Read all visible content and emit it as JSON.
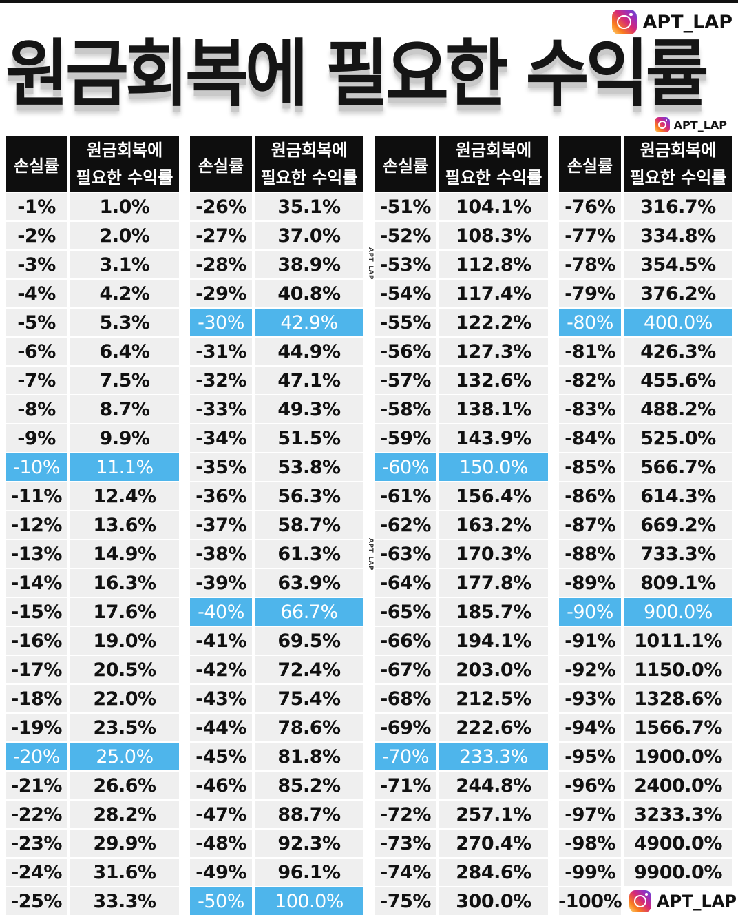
{
  "brand": {
    "handle": "APT_LAP"
  },
  "title": "원금회복에 필요한 수익률",
  "header": {
    "loss": "손실률",
    "need_line1": "원금회복에",
    "need_line2": "필요한 수익률"
  },
  "colors": {
    "highlight": "#4eb5eb",
    "cell": "#efefef",
    "header": "#0e0e0e"
  },
  "columns": [
    {
      "rows": [
        {
          "loss": "-1%",
          "gain": "1.0%"
        },
        {
          "loss": "-2%",
          "gain": "2.0%"
        },
        {
          "loss": "-3%",
          "gain": "3.1%"
        },
        {
          "loss": "-4%",
          "gain": "4.2%"
        },
        {
          "loss": "-5%",
          "gain": "5.3%"
        },
        {
          "loss": "-6%",
          "gain": "6.4%"
        },
        {
          "loss": "-7%",
          "gain": "7.5%"
        },
        {
          "loss": "-8%",
          "gain": "8.7%"
        },
        {
          "loss": "-9%",
          "gain": "9.9%"
        },
        {
          "loss": "-10%",
          "gain": "11.1%",
          "hl": true
        },
        {
          "loss": "-11%",
          "gain": "12.4%"
        },
        {
          "loss": "-12%",
          "gain": "13.6%"
        },
        {
          "loss": "-13%",
          "gain": "14.9%"
        },
        {
          "loss": "-14%",
          "gain": "16.3%"
        },
        {
          "loss": "-15%",
          "gain": "17.6%"
        },
        {
          "loss": "-16%",
          "gain": "19.0%"
        },
        {
          "loss": "-17%",
          "gain": "20.5%"
        },
        {
          "loss": "-18%",
          "gain": "22.0%"
        },
        {
          "loss": "-19%",
          "gain": "23.5%"
        },
        {
          "loss": "-20%",
          "gain": "25.0%",
          "hl": true
        },
        {
          "loss": "-21%",
          "gain": "26.6%"
        },
        {
          "loss": "-22%",
          "gain": "28.2%"
        },
        {
          "loss": "-23%",
          "gain": "29.9%"
        },
        {
          "loss": "-24%",
          "gain": "31.6%"
        },
        {
          "loss": "-25%",
          "gain": "33.3%"
        }
      ]
    },
    {
      "rows": [
        {
          "loss": "-26%",
          "gain": "35.1%"
        },
        {
          "loss": "-27%",
          "gain": "37.0%"
        },
        {
          "loss": "-28%",
          "gain": "38.9%"
        },
        {
          "loss": "-29%",
          "gain": "40.8%"
        },
        {
          "loss": "-30%",
          "gain": "42.9%",
          "hl": true
        },
        {
          "loss": "-31%",
          "gain": "44.9%"
        },
        {
          "loss": "-32%",
          "gain": "47.1%"
        },
        {
          "loss": "-33%",
          "gain": "49.3%"
        },
        {
          "loss": "-34%",
          "gain": "51.5%"
        },
        {
          "loss": "-35%",
          "gain": "53.8%"
        },
        {
          "loss": "-36%",
          "gain": "56.3%"
        },
        {
          "loss": "-37%",
          "gain": "58.7%"
        },
        {
          "loss": "-38%",
          "gain": "61.3%"
        },
        {
          "loss": "-39%",
          "gain": "63.9%"
        },
        {
          "loss": "-40%",
          "gain": "66.7%",
          "hl": true
        },
        {
          "loss": "-41%",
          "gain": "69.5%"
        },
        {
          "loss": "-42%",
          "gain": "72.4%"
        },
        {
          "loss": "-43%",
          "gain": "75.4%"
        },
        {
          "loss": "-44%",
          "gain": "78.6%"
        },
        {
          "loss": "-45%",
          "gain": "81.8%"
        },
        {
          "loss": "-46%",
          "gain": "85.2%"
        },
        {
          "loss": "-47%",
          "gain": "88.7%"
        },
        {
          "loss": "-48%",
          "gain": "92.3%"
        },
        {
          "loss": "-49%",
          "gain": "96.1%"
        },
        {
          "loss": "-50%",
          "gain": "100.0%",
          "hl": true
        }
      ]
    },
    {
      "rows": [
        {
          "loss": "-51%",
          "gain": "104.1%"
        },
        {
          "loss": "-52%",
          "gain": "108.3%"
        },
        {
          "loss": "-53%",
          "gain": "112.8%"
        },
        {
          "loss": "-54%",
          "gain": "117.4%"
        },
        {
          "loss": "-55%",
          "gain": "122.2%"
        },
        {
          "loss": "-56%",
          "gain": "127.3%"
        },
        {
          "loss": "-57%",
          "gain": "132.6%"
        },
        {
          "loss": "-58%",
          "gain": "138.1%"
        },
        {
          "loss": "-59%",
          "gain": "143.9%"
        },
        {
          "loss": "-60%",
          "gain": "150.0%",
          "hl": true
        },
        {
          "loss": "-61%",
          "gain": "156.4%"
        },
        {
          "loss": "-62%",
          "gain": "163.2%"
        },
        {
          "loss": "-63%",
          "gain": "170.3%"
        },
        {
          "loss": "-64%",
          "gain": "177.8%"
        },
        {
          "loss": "-65%",
          "gain": "185.7%"
        },
        {
          "loss": "-66%",
          "gain": "194.1%"
        },
        {
          "loss": "-67%",
          "gain": "203.0%"
        },
        {
          "loss": "-68%",
          "gain": "212.5%"
        },
        {
          "loss": "-69%",
          "gain": "222.6%"
        },
        {
          "loss": "-70%",
          "gain": "233.3%",
          "hl": true
        },
        {
          "loss": "-71%",
          "gain": "244.8%"
        },
        {
          "loss": "-72%",
          "gain": "257.1%"
        },
        {
          "loss": "-73%",
          "gain": "270.4%"
        },
        {
          "loss": "-74%",
          "gain": "284.6%"
        },
        {
          "loss": "-75%",
          "gain": "300.0%"
        }
      ]
    },
    {
      "rows": [
        {
          "loss": "-76%",
          "gain": "316.7%"
        },
        {
          "loss": "-77%",
          "gain": "334.8%"
        },
        {
          "loss": "-78%",
          "gain": "354.5%"
        },
        {
          "loss": "-79%",
          "gain": "376.2%"
        },
        {
          "loss": "-80%",
          "gain": "400.0%",
          "hl": true
        },
        {
          "loss": "-81%",
          "gain": "426.3%"
        },
        {
          "loss": "-82%",
          "gain": "455.6%"
        },
        {
          "loss": "-83%",
          "gain": "488.2%"
        },
        {
          "loss": "-84%",
          "gain": "525.0%"
        },
        {
          "loss": "-85%",
          "gain": "566.7%"
        },
        {
          "loss": "-86%",
          "gain": "614.3%"
        },
        {
          "loss": "-87%",
          "gain": "669.2%"
        },
        {
          "loss": "-88%",
          "gain": "733.3%"
        },
        {
          "loss": "-89%",
          "gain": "809.1%"
        },
        {
          "loss": "-90%",
          "gain": "900.0%",
          "hl": true
        },
        {
          "loss": "-91%",
          "gain": "1011.1%"
        },
        {
          "loss": "-92%",
          "gain": "1150.0%"
        },
        {
          "loss": "-93%",
          "gain": "1328.6%"
        },
        {
          "loss": "-94%",
          "gain": "1566.7%"
        },
        {
          "loss": "-95%",
          "gain": "1900.0%"
        },
        {
          "loss": "-96%",
          "gain": "2400.0%"
        },
        {
          "loss": "-97%",
          "gain": "3233.3%"
        },
        {
          "loss": "-98%",
          "gain": "4900.0%"
        },
        {
          "loss": "-99%",
          "gain": "9900.0%"
        },
        {
          "loss": "-100%",
          "gain": ""
        }
      ]
    }
  ]
}
